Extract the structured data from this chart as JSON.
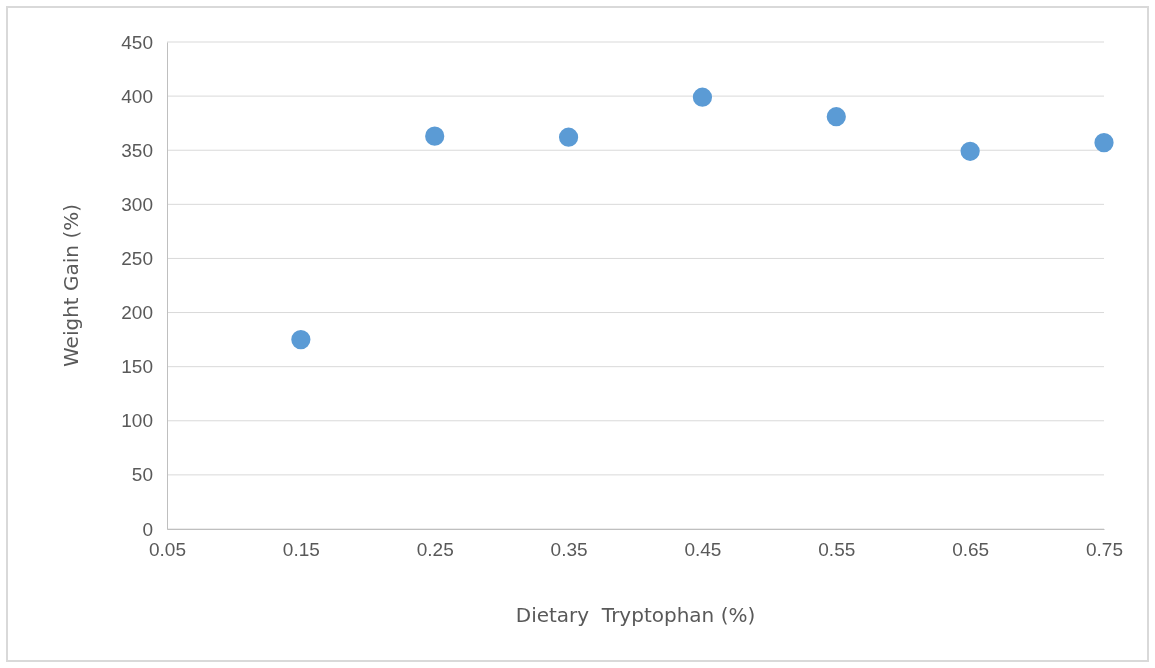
{
  "chart_data": {
    "type": "scatter",
    "xlabel": "Dietary  Tryptophan (%)",
    "ylabel": "Weight Gain (%)",
    "x": [
      0.15,
      0.25,
      0.35,
      0.45,
      0.55,
      0.65,
      0.75
    ],
    "series": [
      {
        "color": "#5b9bd5",
        "values": [
          175,
          363,
          362,
          399,
          381,
          349,
          357
        ]
      }
    ],
    "xlim": [
      0.05,
      0.75
    ],
    "xticks": [
      {
        "value": 0.05,
        "label": "0.05"
      },
      {
        "value": 0.15,
        "label": "0.15"
      },
      {
        "value": 0.25,
        "label": "0.25"
      },
      {
        "value": 0.35,
        "label": "0.35"
      },
      {
        "value": 0.45,
        "label": "0.45"
      },
      {
        "value": 0.55,
        "label": "0.55"
      },
      {
        "value": 0.65,
        "label": "0.65"
      },
      {
        "value": 0.75,
        "label": "0.75"
      }
    ],
    "ylim": [
      0,
      450
    ],
    "yticks": [
      0,
      50,
      100,
      150,
      200,
      250,
      300,
      350,
      400,
      450
    ],
    "grid": "y",
    "marker": "circle"
  }
}
